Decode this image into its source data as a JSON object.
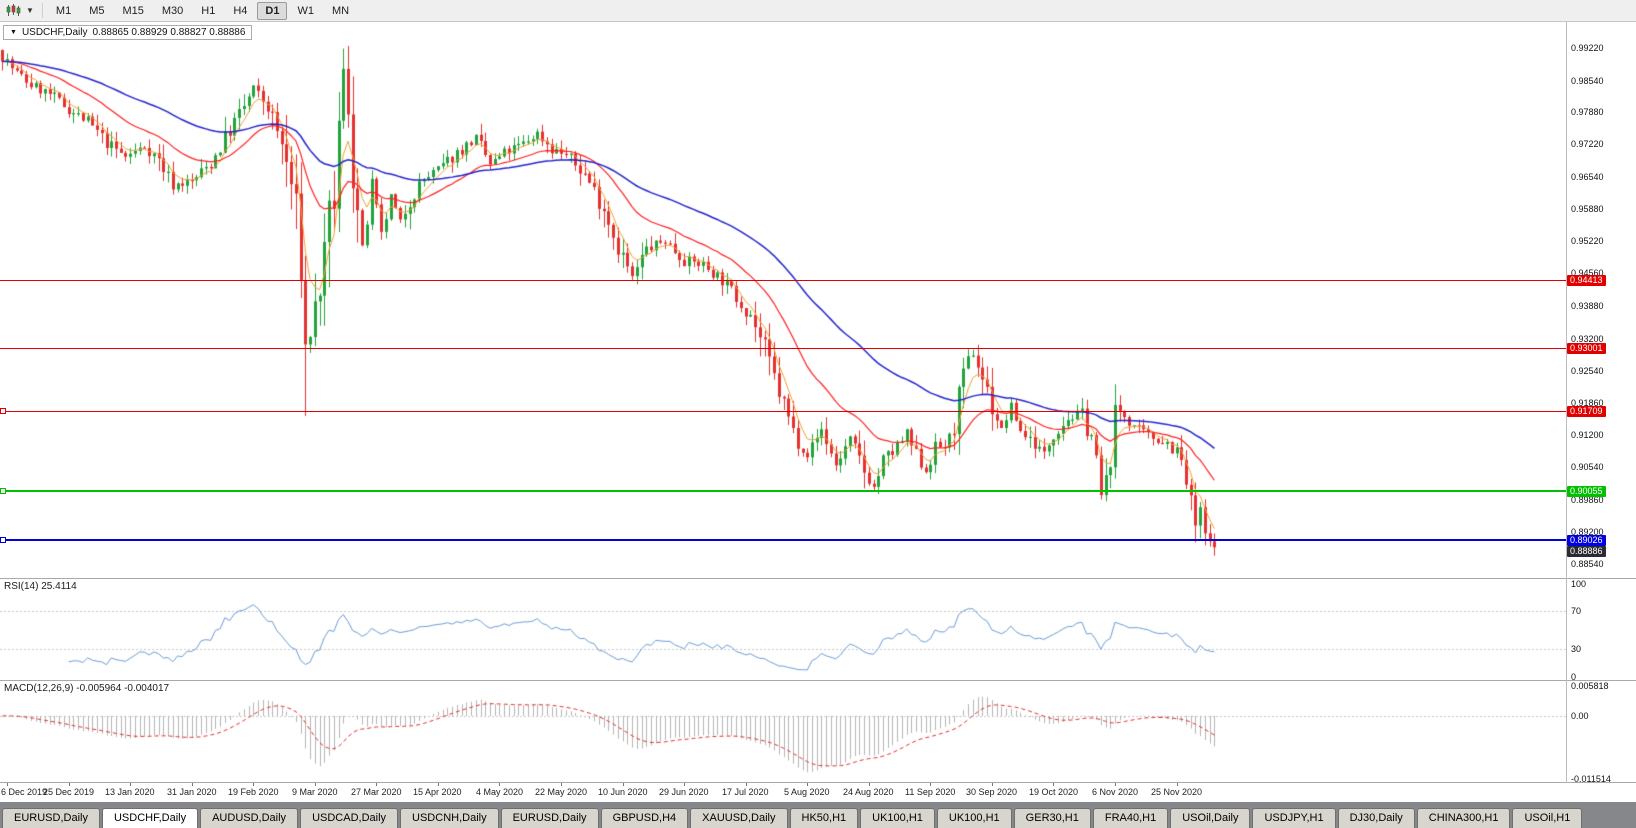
{
  "toolbar": {
    "dropdown_glyph": "▼",
    "timeframes": [
      "M1",
      "M5",
      "M15",
      "M30",
      "H1",
      "H4",
      "D1",
      "W1",
      "MN"
    ],
    "active_timeframe": "D1"
  },
  "chart": {
    "title": "USDCHF,Daily",
    "ohlc": "0.88865 0.88929 0.88827 0.88886",
    "collapse_arrow": "▼"
  },
  "rsi": {
    "label": "RSI(14) 25.4114",
    "period": 14,
    "value": 25.4114,
    "line_color": "#6B9BD2",
    "levels": [
      {
        "value": 100,
        "text": "100",
        "dotted": false
      },
      {
        "value": 70,
        "text": "70",
        "dotted": true
      },
      {
        "value": 30,
        "text": "30",
        "dotted": true
      },
      {
        "value": 0,
        "text": "0",
        "dotted": false
      }
    ]
  },
  "macd": {
    "label": "MACD(12,26,9) -0.005964 -0.004017",
    "main_value": -0.005964,
    "signal_value": -0.004017,
    "max": 0.005818,
    "min": -0.011514,
    "histogram_color": "#B4B4B4",
    "signal_color": "#E03030",
    "levels": [
      {
        "value": 0.005818,
        "text": "0.005818",
        "dotted": false
      },
      {
        "value": 0,
        "text": "0.00",
        "dotted": true
      },
      {
        "value": -0.011514,
        "text": "-0.011514",
        "dotted": false
      }
    ]
  },
  "tabs": {
    "items": [
      {
        "label": "EURUSD,Daily",
        "active": false
      },
      {
        "label": "USDCHF,Daily",
        "active": true
      },
      {
        "label": "AUDUSD,Daily",
        "active": false
      },
      {
        "label": "USDCAD,Daily",
        "active": false
      },
      {
        "label": "USDCNH,Daily",
        "active": false
      },
      {
        "label": "EURUSD,Daily",
        "active": false
      },
      {
        "label": "GBPUSD,H4",
        "active": false
      },
      {
        "label": "XAUUSD,Daily",
        "active": false
      },
      {
        "label": "HK50,H1",
        "active": false
      },
      {
        "label": "UK100,H1",
        "active": false
      },
      {
        "label": "UK100,H1",
        "active": false
      },
      {
        "label": "GER30,H1",
        "active": false
      },
      {
        "label": "FRA40,H1",
        "active": false
      },
      {
        "label": "USOil,Daily",
        "active": false
      },
      {
        "label": "USDJPY,H1",
        "active": false
      },
      {
        "label": "DJ30,Daily",
        "active": false
      },
      {
        "label": "CHINA300,H1",
        "active": false
      },
      {
        "label": "USOil,H1",
        "active": false
      }
    ]
  },
  "chart_data": {
    "type": "candlestick",
    "symbol": "USDCHF",
    "timeframe": "Daily",
    "last_ohlc": {
      "open": 0.88865,
      "high": 0.88929,
      "low": 0.88827,
      "close": 0.88886
    },
    "price_max": 0.9975,
    "price_min": 0.8825,
    "num_bars": 257,
    "candle_region_fraction": 0.777,
    "seed": 7,
    "candle_up_color": "#22A33B",
    "candle_down_color": "#E53030",
    "price_axis_ticks": [
      "0.99220",
      "0.98540",
      "0.97880",
      "0.97220",
      "0.96540",
      "0.95880",
      "0.95220",
      "0.94560",
      "0.93880",
      "0.93200",
      "0.92540",
      "0.91860",
      "0.91200",
      "0.90540",
      "0.89860",
      "0.89200",
      "0.88540"
    ],
    "ma_lines": [
      {
        "name": "ma-fast",
        "period": 5,
        "color": "#F0A030",
        "width": 1
      },
      {
        "name": "ma-medium",
        "period": 21,
        "color": "#FF2020",
        "width": 1.2
      },
      {
        "name": "ma-slow",
        "period": 55,
        "color": "#2525CC",
        "width": 1.5
      }
    ],
    "hlines": [
      {
        "price": 0.94413,
        "label": "0.94413",
        "color": "#E00000",
        "thickness": 1,
        "handle": false
      },
      {
        "price": 0.93001,
        "label": "0.93001",
        "color": "#E00000",
        "thickness": 1,
        "handle": false
      },
      {
        "price": 0.91709,
        "label": "0.91709",
        "color": "#E00000",
        "thickness": 1,
        "handle": true
      },
      {
        "price": 0.90055,
        "label": "0.90055",
        "color": "#00C000",
        "thickness": 2,
        "handle": true
      },
      {
        "price": 0.89026,
        "label": "0.89026",
        "color": "#0000E0",
        "thickness": 2,
        "handle": true
      }
    ],
    "current_price": {
      "value": 0.88886,
      "label": "0.88886",
      "color": "#2B2B33"
    },
    "spike_low": {
      "bar": 64,
      "price": 0.916
    },
    "spike_high": {
      "bar": 72,
      "price": 0.992
    },
    "x_labels": [
      {
        "bar": 1,
        "text": "6 Dec 2019"
      },
      {
        "bar": 14,
        "text": "25 Dec 2019"
      },
      {
        "bar": 27,
        "text": "13 Jan 2020"
      },
      {
        "bar": 40,
        "text": "31 Jan 2020"
      },
      {
        "bar": 53,
        "text": "19 Feb 2020"
      },
      {
        "bar": 66,
        "text": "9 Mar 2020"
      },
      {
        "bar": 79,
        "text": "27 Mar 2020"
      },
      {
        "bar": 92,
        "text": "15 Apr 2020"
      },
      {
        "bar": 105,
        "text": "4 May 2020"
      },
      {
        "bar": 118,
        "text": "22 May 2020"
      },
      {
        "bar": 131,
        "text": "10 Jun 2020"
      },
      {
        "bar": 144,
        "text": "29 Jun 2020"
      },
      {
        "bar": 157,
        "text": "17 Jul 2020"
      },
      {
        "bar": 170,
        "text": "5 Aug 2020"
      },
      {
        "bar": 183,
        "text": "24 Aug 2020"
      },
      {
        "bar": 196,
        "text": "11 Sep 2020"
      },
      {
        "bar": 209,
        "text": "30 Sep 2020"
      },
      {
        "bar": 222,
        "text": "19 Oct 2020"
      },
      {
        "bar": 235,
        "text": "6 Nov 2020"
      },
      {
        "bar": 248,
        "text": "25 Nov 2020"
      }
    ],
    "waypoints": [
      [
        0,
        0.9905
      ],
      [
        3,
        0.9868
      ],
      [
        6,
        0.9845
      ],
      [
        10,
        0.9825
      ],
      [
        14,
        0.9795
      ],
      [
        18,
        0.9768
      ],
      [
        22,
        0.9725
      ],
      [
        26,
        0.9696
      ],
      [
        30,
        0.9718
      ],
      [
        33,
        0.969
      ],
      [
        36,
        0.9638
      ],
      [
        40,
        0.9645
      ],
      [
        44,
        0.9683
      ],
      [
        48,
        0.9752
      ],
      [
        51,
        0.98
      ],
      [
        53,
        0.9838
      ],
      [
        56,
        0.98
      ],
      [
        59,
        0.972
      ],
      [
        61,
        0.964
      ],
      [
        63,
        0.948
      ],
      [
        64,
        0.93
      ],
      [
        65,
        0.933
      ],
      [
        66,
        0.938
      ],
      [
        68,
        0.948
      ],
      [
        70,
        0.962
      ],
      [
        71,
        0.975
      ],
      [
        72,
        0.987
      ],
      [
        73,
        0.98
      ],
      [
        74,
        0.968
      ],
      [
        75,
        0.958
      ],
      [
        76,
        0.95
      ],
      [
        77,
        0.956
      ],
      [
        78,
        0.964
      ],
      [
        79,
        0.959
      ],
      [
        80,
        0.953
      ],
      [
        82,
        0.961
      ],
      [
        84,
        0.956
      ],
      [
        86,
        0.961
      ],
      [
        89,
        0.965
      ],
      [
        92,
        0.9668
      ],
      [
        96,
        0.9705
      ],
      [
        100,
        0.9733
      ],
      [
        103,
        0.968
      ],
      [
        106,
        0.9703
      ],
      [
        110,
        0.9723
      ],
      [
        113,
        0.9745
      ],
      [
        116,
        0.9713
      ],
      [
        119,
        0.97
      ],
      [
        123,
        0.966
      ],
      [
        127,
        0.9592
      ],
      [
        130,
        0.9512
      ],
      [
        133,
        0.9445
      ],
      [
        136,
        0.9505
      ],
      [
        140,
        0.9523
      ],
      [
        144,
        0.9482
      ],
      [
        148,
        0.9473
      ],
      [
        152,
        0.9442
      ],
      [
        155,
        0.9405
      ],
      [
        158,
        0.9372
      ],
      [
        161,
        0.9295
      ],
      [
        164,
        0.921
      ],
      [
        167,
        0.9128
      ],
      [
        170,
        0.908
      ],
      [
        173,
        0.9132
      ],
      [
        176,
        0.9058
      ],
      [
        179,
        0.9112
      ],
      [
        182,
        0.9046
      ],
      [
        184,
        0.9012
      ],
      [
        186,
        0.9065
      ],
      [
        189,
        0.9095
      ],
      [
        191,
        0.9122
      ],
      [
        193,
        0.9075
      ],
      [
        195,
        0.9048
      ],
      [
        197,
        0.9092
      ],
      [
        200,
        0.9105
      ],
      [
        202,
        0.919
      ],
      [
        204,
        0.927
      ],
      [
        205,
        0.929
      ],
      [
        207,
        0.924
      ],
      [
        209,
        0.918
      ],
      [
        211,
        0.913
      ],
      [
        213,
        0.918
      ],
      [
        215,
        0.913
      ],
      [
        218,
        0.9105
      ],
      [
        220,
        0.908
      ],
      [
        222,
        0.9128
      ],
      [
        225,
        0.9155
      ],
      [
        228,
        0.9165
      ],
      [
        230,
        0.912
      ],
      [
        231,
        0.906
      ],
      [
        232,
        0.8995
      ],
      [
        233,
        0.902
      ],
      [
        234,
        0.909
      ],
      [
        235,
        0.9155
      ],
      [
        236,
        0.917
      ],
      [
        238,
        0.915
      ],
      [
        240,
        0.9128
      ],
      [
        243,
        0.9115
      ],
      [
        246,
        0.9105
      ],
      [
        248,
        0.9085
      ],
      [
        249,
        0.906
      ],
      [
        250,
        0.902
      ],
      [
        251,
        0.8975
      ],
      [
        252,
        0.8935
      ],
      [
        253,
        0.8955
      ],
      [
        254,
        0.8915
      ],
      [
        255,
        0.889
      ],
      [
        256,
        0.88886
      ]
    ]
  }
}
